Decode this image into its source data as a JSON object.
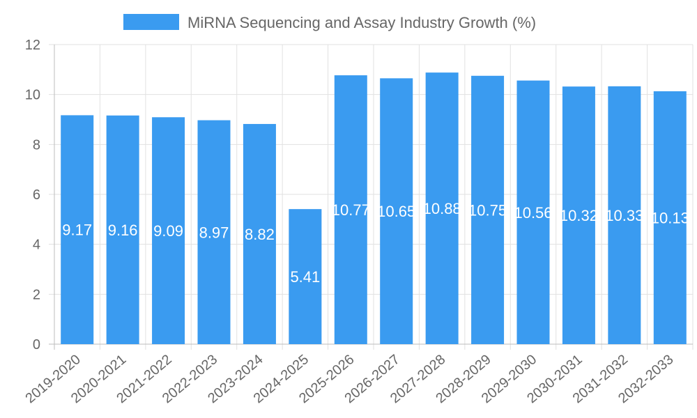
{
  "chart_data": {
    "type": "bar",
    "title": "",
    "xlabel": "",
    "ylabel": "",
    "legend": {
      "position": "top",
      "label": "MiRNA Sequencing and Assay Industry Growth (%)"
    },
    "series_color": "#3a9bf0",
    "categories": [
      "2019-2020",
      "2020-2021",
      "2021-2022",
      "2022-2023",
      "2023-2024",
      "2024-2025",
      "2025-2026",
      "2026-2027",
      "2027-2028",
      "2028-2029",
      "2029-2030",
      "2030-2031",
      "2031-2032",
      "2032-2033"
    ],
    "values": [
      9.17,
      9.16,
      9.09,
      8.97,
      8.82,
      5.41,
      10.77,
      10.65,
      10.88,
      10.75,
      10.56,
      10.32,
      10.33,
      10.13
    ],
    "value_labels": [
      "9.17",
      "9.16",
      "9.09",
      "8.97",
      "8.82",
      "5.41",
      "10.77",
      "10.65",
      "10.88",
      "10.75",
      "10.56",
      "10.32",
      "10.33",
      "10.13"
    ],
    "ylim": [
      0,
      12
    ],
    "yticks": [
      "0",
      "2",
      "4",
      "6",
      "8",
      "10",
      "12"
    ],
    "grid": true
  }
}
